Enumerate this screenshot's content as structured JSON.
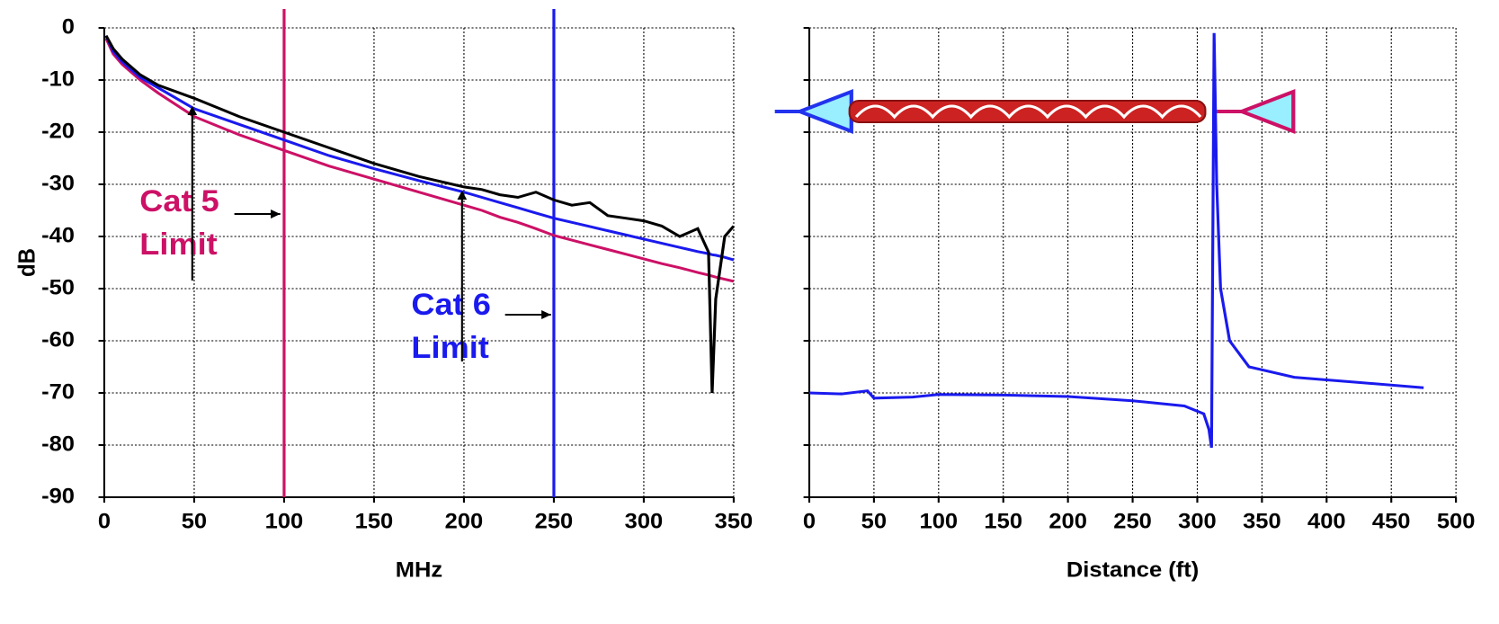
{
  "chart_data": [
    {
      "type": "line",
      "xlabel": "MHz",
      "ylabel": "dB",
      "x": [
        1,
        5,
        10,
        20,
        30,
        50,
        75,
        100,
        125,
        150,
        175,
        200,
        210,
        220,
        230,
        240,
        250,
        260,
        270,
        280,
        290,
        300,
        310,
        320,
        330,
        336,
        338,
        340,
        345,
        350
      ],
      "series": [
        {
          "color": "#cc1166",
          "values": [
            -2,
            -5,
            -7,
            -10,
            -12.5,
            -17,
            -20.5,
            -23.5,
            -26.5,
            -29,
            -31.5,
            -34,
            -35,
            -36.3,
            -37.3,
            -38.5,
            -39.8,
            -40.7,
            -41.6,
            -42.5,
            -43.4,
            -44.3,
            -45.2,
            -46,
            -46.9,
            -47.4,
            -47.6,
            -47.8,
            -48.2,
            -48.6
          ]
        },
        {
          "color": "#1a1aee",
          "values": [
            -1.5,
            -4.5,
            -6.5,
            -9.5,
            -11.5,
            -15.5,
            -18.5,
            -21.5,
            -24.5,
            -27,
            -29.3,
            -31.5,
            -32.5,
            -33.5,
            -34.5,
            -35.5,
            -36.5,
            -37.3,
            -38.1,
            -38.9,
            -39.7,
            -40.5,
            -41.3,
            -42.1,
            -42.9,
            -43.3,
            -43.5,
            -43.6,
            -44,
            -44.5
          ]
        },
        {
          "color": "#000000",
          "values": [
            -1.5,
            -4,
            -6,
            -9,
            -11,
            -13.5,
            -17,
            -20,
            -23,
            -26,
            -28.5,
            -30.5,
            -31,
            -32,
            -32.5,
            -31.5,
            -33,
            -34,
            -33.5,
            -36,
            -36.5,
            -37,
            -38,
            -40,
            -38.5,
            -43,
            -70,
            -52,
            -40,
            -38
          ]
        }
      ],
      "vlines": [
        {
          "x": 100,
          "color": "#cc1166"
        },
        {
          "x": 250,
          "color": "#1a1aee"
        }
      ],
      "annotations": [
        {
          "lines": [
            "Cat 5",
            "Limit"
          ],
          "color": "#cc1166"
        },
        {
          "lines": [
            "Cat 6",
            "Limit"
          ],
          "color": "#1a1aee"
        }
      ],
      "xlim": [
        0,
        350
      ],
      "xticks": [
        0,
        50,
        100,
        150,
        200,
        250,
        300,
        350
      ],
      "ylim": [
        -90,
        0
      ],
      "yticks": [
        -90,
        -80,
        -70,
        -60,
        -50,
        -40,
        -30,
        -20,
        -10,
        0
      ],
      "grid": true,
      "ytick_labels": true
    },
    {
      "type": "line",
      "xlabel": "Distance (ft)",
      "x": [
        0,
        25,
        45,
        50,
        80,
        100,
        150,
        200,
        250,
        290,
        305,
        309,
        311,
        313,
        315,
        318,
        325,
        340,
        375,
        425,
        475
      ],
      "series": [
        {
          "color": "#1a1aee",
          "values": [
            -70,
            -70.2,
            -69.6,
            -71,
            -70.8,
            -70.3,
            -70.4,
            -70.7,
            -71.5,
            -72.5,
            -74,
            -77,
            -80.5,
            -1,
            -30,
            -50,
            -60,
            -65,
            -67,
            -68,
            -69
          ]
        }
      ],
      "xlim": [
        0,
        500
      ],
      "xticks": [
        0,
        50,
        100,
        150,
        200,
        250,
        300,
        350,
        400,
        450,
        500
      ],
      "ylim": [
        -90,
        0
      ],
      "yticks": [
        -90,
        -80,
        -70,
        -60,
        -50,
        -40,
        -30,
        -20,
        -10,
        0
      ],
      "grid": true,
      "ytick_labels": false
    }
  ]
}
